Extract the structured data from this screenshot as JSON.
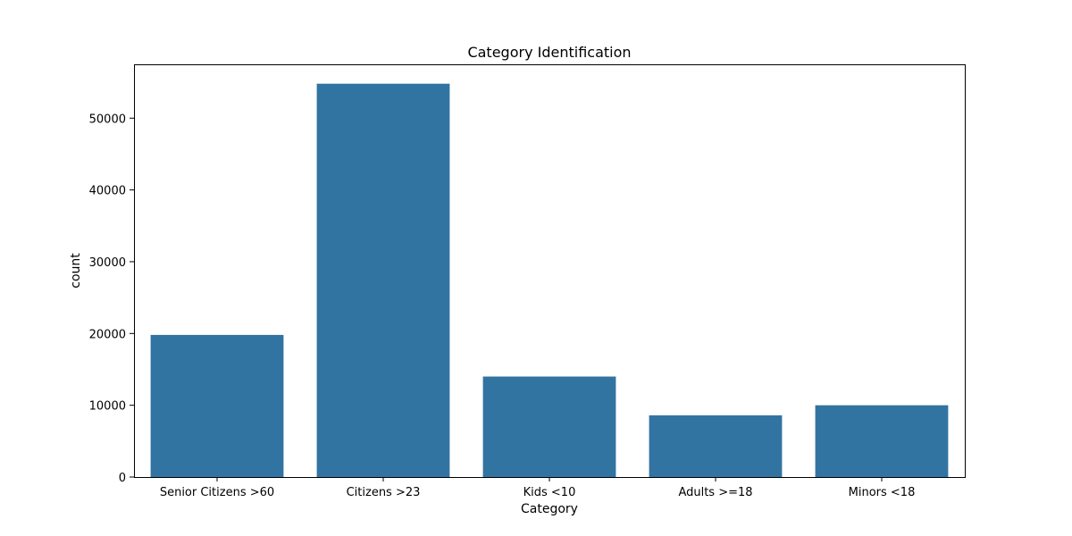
{
  "chart_data": {
    "type": "bar",
    "title": "Category Identification",
    "xlabel": "Category",
    "ylabel": "count",
    "categories": [
      "Senior Citizens >60",
      "Citizens >23",
      "Kids <10",
      "Adults >=18",
      "Minors <18"
    ],
    "values": [
      19800,
      54800,
      14000,
      8600,
      10000
    ],
    "ylim": [
      0,
      57500
    ],
    "yticks": [
      0,
      10000,
      20000,
      30000,
      40000,
      50000
    ],
    "ytick_labels": [
      "0",
      "10000",
      "20000",
      "30000",
      "40000",
      "50000"
    ],
    "bar_color": "#3274a1",
    "grid": false,
    "legend": "none"
  }
}
